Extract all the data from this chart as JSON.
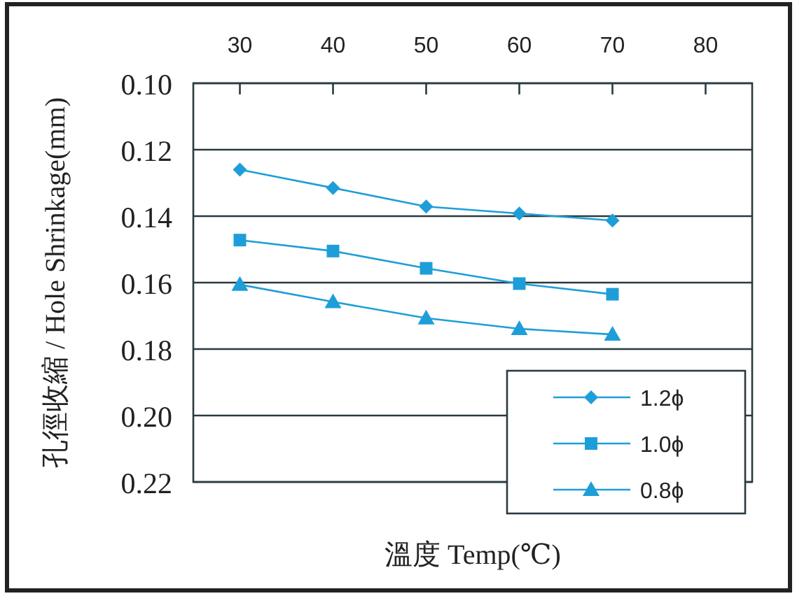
{
  "chart_data": {
    "type": "line",
    "xlabel": "溫度 Temp(℃)",
    "ylabel": "孔徑收縮 / Hole Shrinkage(mm)",
    "x": [
      30,
      40,
      50,
      60,
      70
    ],
    "xlim": [
      25,
      85
    ],
    "xticks": [
      30,
      40,
      50,
      60,
      70,
      80
    ],
    "ylim": [
      0.22,
      0.1
    ],
    "yticks": [
      {
        "value": 0.1,
        "label": "0.10"
      },
      0.12,
      0.14,
      0.16,
      0.18,
      {
        "value": 0.2,
        "label": "0.20"
      },
      0.22
    ],
    "grid": "y",
    "legend": "bottom right",
    "line_style": "solid",
    "series": [
      {
        "name": "1.2ϕ",
        "color": "#1e9ed8",
        "marker": "diamond",
        "values": [
          0.126,
          0.1315,
          0.1371,
          0.1392,
          0.1413
        ]
      },
      {
        "name": "1.0ϕ",
        "color": "#1e9ed8",
        "marker": "square",
        "values": [
          0.1472,
          0.1505,
          0.1557,
          0.1603,
          0.1635
        ]
      },
      {
        "name": "0.8ϕ",
        "color": "#1e9ed8",
        "marker": "triangle",
        "values": [
          0.1606,
          0.1658,
          0.1707,
          0.1739,
          0.1756
        ]
      }
    ]
  }
}
